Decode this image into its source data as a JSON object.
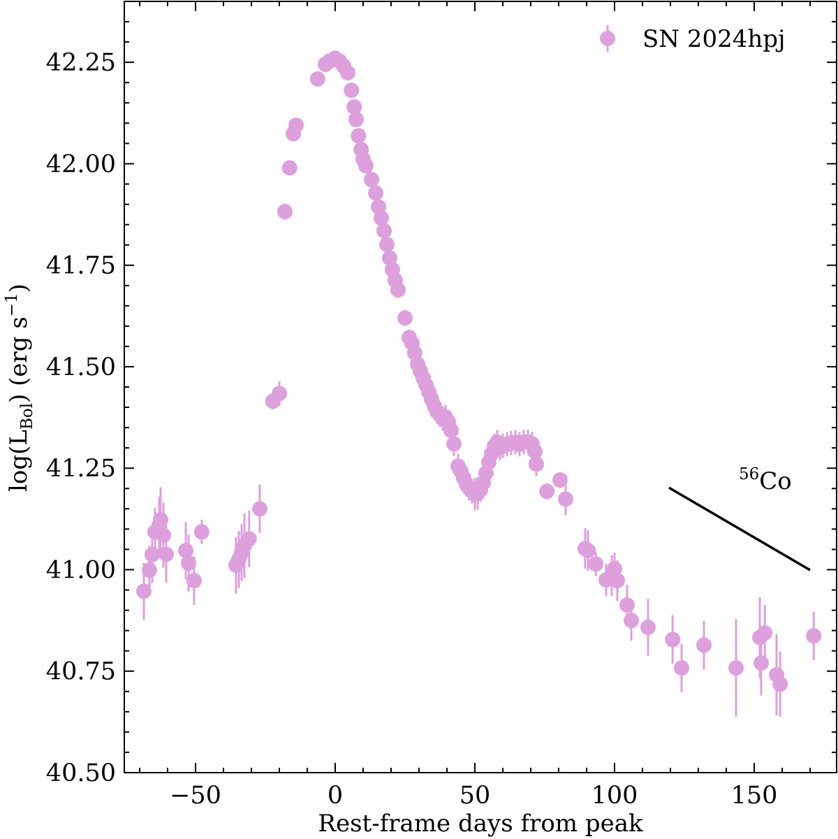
{
  "chart_data": {
    "type": "scatter",
    "xlabel": "Rest-frame days from peak",
    "ylabel_main": "log(L",
    "ylabel_sub": "Bol",
    "ylabel_rest": ") (erg s",
    "ylabel_sup": "−1",
    "ylabel_end": ")",
    "xlim": [
      -75.5,
      179.5
    ],
    "ylim": [
      40.5,
      42.4
    ],
    "xticks": [
      -50,
      0,
      50,
      100,
      150
    ],
    "xtick_labels": [
      "−50",
      "0",
      "50",
      "100",
      "150"
    ],
    "yticks": [
      40.5,
      40.75,
      41.0,
      41.25,
      41.5,
      41.75,
      42.0,
      42.25
    ],
    "ytick_labels": [
      "40.50",
      "40.75",
      "41.00",
      "41.25",
      "41.50",
      "41.75",
      "42.00",
      "42.25"
    ],
    "x_minor_step": 10,
    "y_minor_step": 0.05,
    "grid": false,
    "legend_position": "top-right",
    "series": [
      {
        "name": "SN 2024hpj",
        "color": "#dda0dd",
        "points": [
          [
            -68.5,
            40.947,
            0.07
          ],
          [
            -66.5,
            40.999,
            0.06
          ],
          [
            -65.5,
            41.037,
            0.07
          ],
          [
            -64.5,
            41.093,
            0.06
          ],
          [
            -63,
            41.11,
            0.07
          ],
          [
            -62.5,
            41.123,
            0.08
          ],
          [
            -61.5,
            41.085,
            0.08
          ],
          [
            -60.5,
            41.038,
            0.07
          ],
          [
            -53.5,
            41.047,
            0.07
          ],
          [
            -52.5,
            41.016,
            0.07
          ],
          [
            -50.5,
            40.973,
            0.06
          ],
          [
            -47.8,
            41.093,
            0.03
          ],
          [
            -35.5,
            41.011,
            0.07
          ],
          [
            -34.5,
            41.025,
            0.07
          ],
          [
            -33.5,
            41.042,
            0.07
          ],
          [
            -32.5,
            41.059,
            0.08
          ],
          [
            -30.8,
            41.076,
            0.07
          ],
          [
            -27,
            41.15,
            0.06
          ],
          [
            -22.3,
            41.415,
            0.02
          ],
          [
            -20,
            41.434,
            0.03
          ],
          [
            -18,
            41.882,
            0.02
          ],
          [
            -16.3,
            41.99,
            0.01
          ],
          [
            -15,
            42.074,
            0.01
          ],
          [
            -14,
            42.095,
            0.01
          ],
          [
            -6.3,
            42.209,
            0.01
          ],
          [
            -3.5,
            42.245,
            0.01
          ],
          [
            -2,
            42.253,
            0.01
          ],
          [
            0,
            42.26,
            0.01
          ],
          [
            1.5,
            42.253,
            0.01
          ],
          [
            3,
            42.241,
            0.01
          ],
          [
            4.5,
            42.224,
            0.01
          ],
          [
            5.8,
            42.181,
            0.01
          ],
          [
            6.8,
            42.14,
            0.01
          ],
          [
            7.5,
            42.109,
            0.01
          ],
          [
            8.3,
            42.069,
            0.01
          ],
          [
            9.3,
            42.035,
            0.01
          ],
          [
            10,
            42.011,
            0.01
          ],
          [
            11,
            41.995,
            0.01
          ],
          [
            13,
            41.961,
            0.01
          ],
          [
            14.5,
            41.928,
            0.01
          ],
          [
            15.5,
            41.894,
            0.01
          ],
          [
            16.5,
            41.866,
            0.01
          ],
          [
            17.5,
            41.835,
            0.01
          ],
          [
            18.5,
            41.801,
            0.01
          ],
          [
            19.5,
            41.768,
            0.01
          ],
          [
            20.5,
            41.739,
            0.01
          ],
          [
            21.5,
            41.713,
            0.01
          ],
          [
            22.5,
            41.689,
            0.02
          ],
          [
            25,
            41.62,
            0.02
          ],
          [
            26.5,
            41.572,
            0.02
          ],
          [
            27.5,
            41.558,
            0.02
          ],
          [
            28.5,
            41.534,
            0.02
          ],
          [
            29.5,
            41.506,
            0.02
          ],
          [
            30.5,
            41.489,
            0.02
          ],
          [
            31.5,
            41.472,
            0.02
          ],
          [
            32.5,
            41.455,
            0.02
          ],
          [
            33.5,
            41.438,
            0.02
          ],
          [
            34.5,
            41.42,
            0.02
          ],
          [
            35.5,
            41.403,
            0.03
          ],
          [
            36.5,
            41.389,
            0.03
          ],
          [
            37.5,
            41.381,
            0.03
          ],
          [
            38.5,
            41.372,
            0.03
          ],
          [
            39.5,
            41.376,
            0.03
          ],
          [
            40.5,
            41.364,
            0.03
          ],
          [
            41.5,
            41.343,
            0.03
          ],
          [
            42.5,
            41.31,
            0.03
          ],
          [
            44,
            41.255,
            0.03
          ],
          [
            45,
            41.243,
            0.03
          ],
          [
            46,
            41.226,
            0.03
          ],
          [
            47,
            41.21,
            0.03
          ],
          [
            48,
            41.2,
            0.03
          ],
          [
            49,
            41.193,
            0.03
          ],
          [
            50,
            41.186,
            0.04
          ],
          [
            51,
            41.188,
            0.04
          ],
          [
            52,
            41.197,
            0.03
          ],
          [
            53,
            41.214,
            0.03
          ],
          [
            54,
            41.238,
            0.03
          ],
          [
            55,
            41.265,
            0.03
          ],
          [
            56,
            41.286,
            0.03
          ],
          [
            57,
            41.305,
            0.03
          ],
          [
            58,
            41.314,
            0.03
          ],
          [
            59,
            41.3,
            0.03
          ],
          [
            60,
            41.305,
            0.03
          ],
          [
            61.5,
            41.309,
            0.03
          ],
          [
            63,
            41.312,
            0.03
          ],
          [
            64.5,
            41.314,
            0.03
          ],
          [
            66,
            41.309,
            0.03
          ],
          [
            67.5,
            41.314,
            0.03
          ],
          [
            69,
            41.315,
            0.03
          ],
          [
            70.5,
            41.31,
            0.03
          ],
          [
            71.5,
            41.291,
            0.03
          ],
          [
            72,
            41.26,
            0.03
          ],
          [
            75.8,
            41.193,
            0.02
          ],
          [
            80.5,
            41.221,
            0.02
          ],
          [
            82.5,
            41.174,
            0.04
          ],
          [
            89.5,
            41.052,
            0.05
          ],
          [
            90.5,
            41.047,
            0.05
          ],
          [
            93.3,
            41.014,
            0.03
          ],
          [
            97,
            40.975,
            0.04
          ],
          [
            99,
            40.985,
            0.05
          ],
          [
            100,
            41.002,
            0.04
          ],
          [
            101,
            40.973,
            0.05
          ],
          [
            104.5,
            40.913,
            0.05
          ],
          [
            106,
            40.875,
            0.05
          ],
          [
            112,
            40.858,
            0.07
          ],
          [
            120.8,
            40.828,
            0.06
          ],
          [
            124,
            40.758,
            0.06
          ],
          [
            132,
            40.814,
            0.06
          ],
          [
            143.5,
            40.758,
            0.12
          ],
          [
            152,
            40.833,
            0.1
          ],
          [
            152.5,
            40.77,
            0.08
          ],
          [
            153.8,
            40.844,
            0.07
          ],
          [
            158,
            40.741,
            0.1
          ],
          [
            159.3,
            40.718,
            0.08
          ],
          [
            171.3,
            40.837,
            0.06
          ]
        ]
      }
    ],
    "annotations": [
      {
        "label_sup": "56",
        "label": "Co",
        "line": [
          [
            119.5,
            41.202
          ],
          [
            170,
            40.999
          ]
        ],
        "color": "#000000"
      }
    ]
  }
}
